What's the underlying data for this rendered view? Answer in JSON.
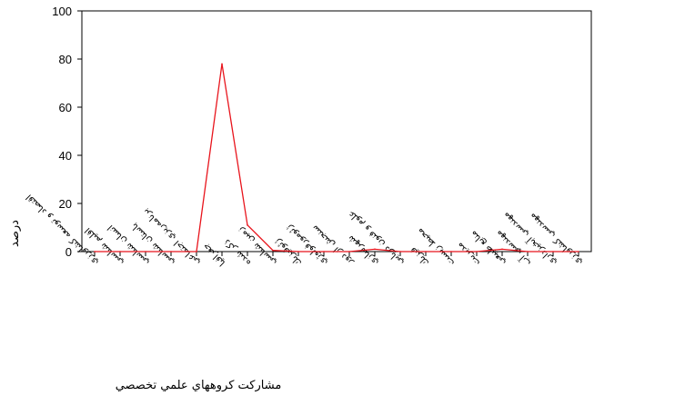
{
  "chart_data": {
    "type": "line",
    "title": "",
    "xlabel": "مشاركت كروههاي علمي تخصصي",
    "ylabel": "درصد",
    "ylim": [
      0,
      100
    ],
    "yticks": [
      0,
      20,
      40,
      60,
      80,
      100
    ],
    "grid": false,
    "legend": "none",
    "categories": [
      "اقتصاد و توسعه كشاورزي",
      "اقليم شناسي",
      "انسان شناسي",
      "باستان شناسي",
      "برنامه‌ريزي اجتماعي",
      "جغرافيا",
      "ذكر شده",
      "زمين شناسي",
      "ژئوفيزيك",
      "ژئومورفولوژي",
      "سنجش از دور",
      "شهرسازي",
      "علوم و فنون دريايي",
      "فيزيك",
      "محيط زيست",
      "مديريت",
      "منابع طبيعي",
      "مهندسي آب",
      "مهندسي آبخيزداري",
      "مهندسي كشاورزي"
    ],
    "values": [
      0,
      0,
      0,
      0,
      0,
      78,
      11,
      0.5,
      0,
      0,
      0,
      1,
      0,
      0,
      0,
      0,
      1,
      0,
      0,
      0
    ],
    "colors": {
      "line": "#e8141c",
      "axis": "#000000",
      "background": "#ffffff"
    }
  }
}
